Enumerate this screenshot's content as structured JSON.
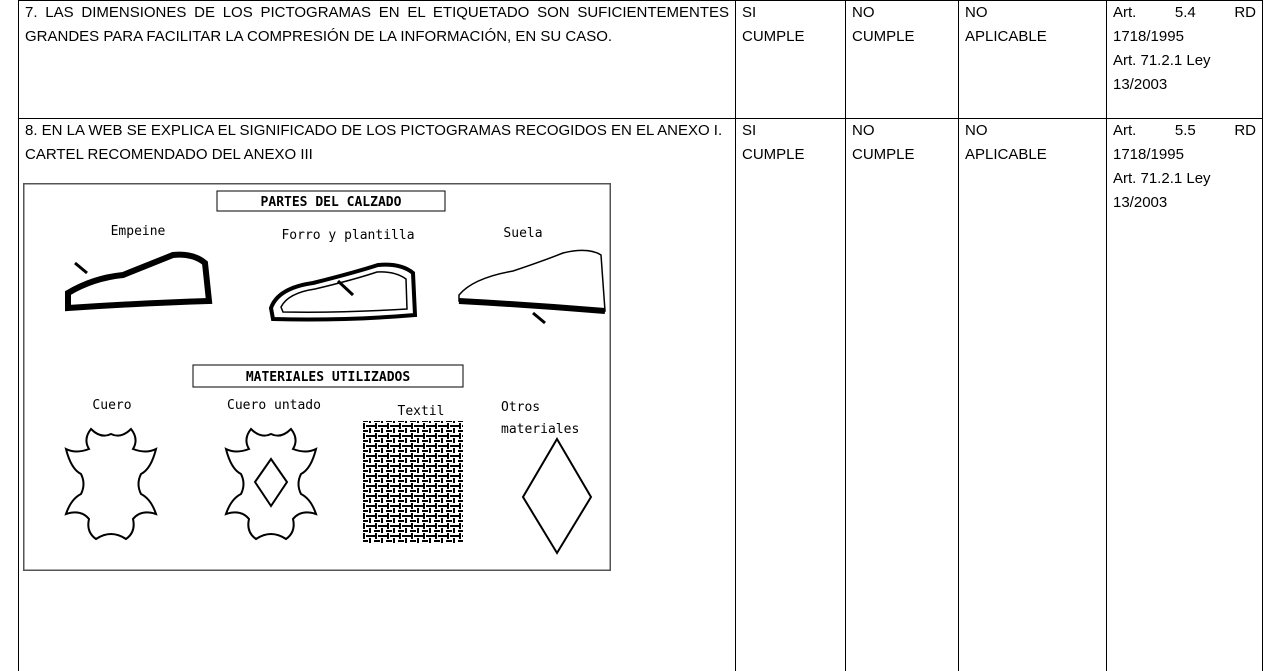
{
  "table": {
    "rows": [
      {
        "requirement": [
          "7. LAS DIMENSIONES DE LOS PICTOGRAMAS EN EL ETIQUETADO SON SUFICIENTEMENTES GRANDES PARA FACILITAR LA COMPRESIÓN DE LA INFORMACIÓN, EN SU CASO."
        ],
        "yes": "SI CUMPLE",
        "no": "NO CUMPLE",
        "na": "NO APLICABLE",
        "reference": [
          "Art. 5.4 RD 1718/1995",
          "Art. 71.2.1 Ley 13/2003"
        ]
      },
      {
        "requirement": [
          "8. EN LA WEB SE EXPLICA EL SIGNIFICADO DE LOS PICTOGRAMAS RECOGIDOS EN EL ANEXO I.",
          "CARTEL RECOMENDADO DEL ANEXO III"
        ],
        "yes": "SI CUMPLE",
        "no": "NO CUMPLE",
        "na": "NO APLICABLE",
        "reference": [
          "Art. 5.5 RD 1718/1995",
          "Art. 71.2.1 Ley 13/2003"
        ],
        "figure": {
          "parts_title": "PARTES DEL CALZADO",
          "parts": [
            "Empeine",
            "Forro y plantilla",
            "Suela"
          ],
          "materials_title": "MATERIALES UTILIZADOS",
          "materials": [
            "Cuero",
            "Cuero untado",
            "Textil",
            [
              "Otros",
              "materiales"
            ]
          ]
        }
      }
    ]
  }
}
